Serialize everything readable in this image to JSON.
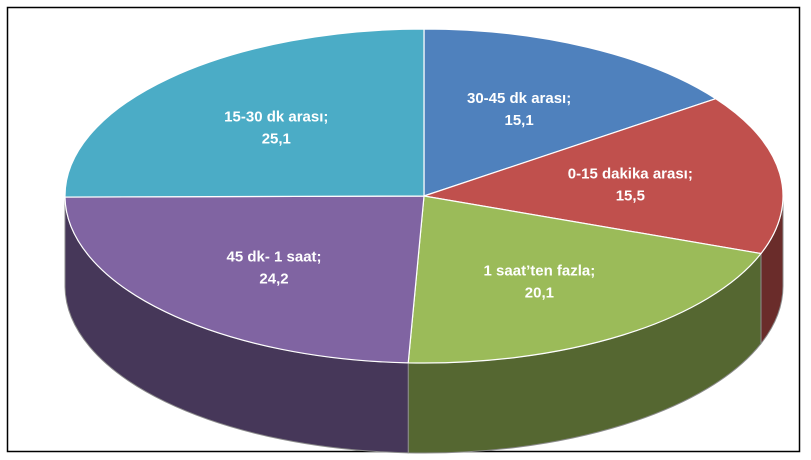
{
  "chart_data": {
    "type": "pie",
    "three_d": true,
    "categories": [
      "30-45 dk arası",
      "0-15 dakika arası",
      "1 saat’ten fazla",
      "45 dk- 1 saat",
      "15-30 dk arası"
    ],
    "values": [
      15.1,
      15.5,
      20.1,
      24.2,
      25.1
    ],
    "value_labels": [
      "15,1",
      "15,5",
      "20,1",
      "24,2",
      "25,1"
    ],
    "label_separator": ";",
    "colors": [
      "#4f81bd",
      "#c0504d",
      "#9bbb59",
      "#8064a2",
      "#4bacc6"
    ]
  }
}
